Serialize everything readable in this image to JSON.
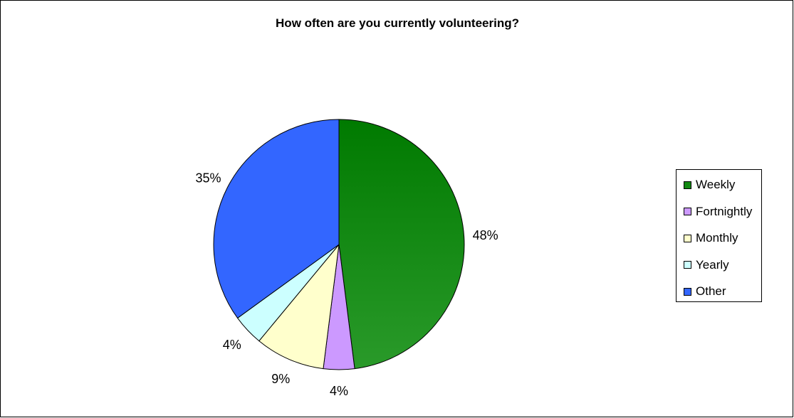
{
  "chart_data": {
    "type": "pie",
    "title": "How often are you currently volunteering?",
    "slices": [
      {
        "name": "Weekly",
        "value": 48,
        "label": "48%",
        "color": "#118811"
      },
      {
        "name": "Fortnightly",
        "value": 4,
        "label": "4%",
        "color": "#cc99ff"
      },
      {
        "name": "Monthly",
        "value": 9,
        "label": "9%",
        "color": "#ffffcc"
      },
      {
        "name": "Yearly",
        "value": 4,
        "label": "4%",
        "color": "#ccffff"
      },
      {
        "name": "Other",
        "value": 35,
        "label": "35%",
        "color": "#3366ff"
      }
    ],
    "legend": {
      "placement": "right",
      "items": [
        "Weekly",
        "Fortnightly",
        "Monthly",
        "Yearly",
        "Other"
      ]
    }
  }
}
